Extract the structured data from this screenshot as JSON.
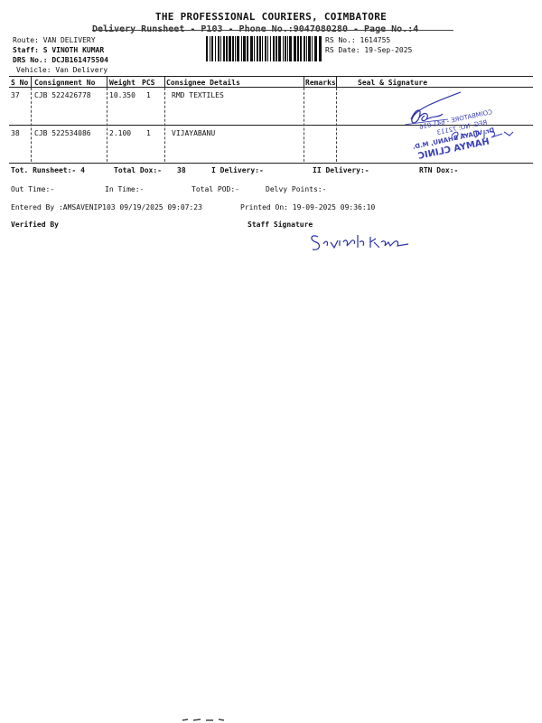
{
  "header": {
    "company": "THE PROFESSIONAL COURIERS, COIMBATORE",
    "subtitle": "Delivery Runsheet - P103 - Phone No.:9047080280 - Page No.:4",
    "route": "Route: VAN DELIVERY",
    "staff": "Staff: S VINOTH KUMAR",
    "drs": "DRS No.: DCJB161475504",
    "vehicle": "Vehicle: Van Delivery",
    "rs_no": "RS No.: 1614755",
    "rs_date": "RS Date: 19-Sep-2025"
  },
  "table": {
    "columns": {
      "sno": "S No",
      "consignment": "Consignment No",
      "weight": "Weight",
      "pcs": "PCS",
      "consignee": "Consignee Details",
      "remarks": "Remarks",
      "seal": "Seal & Signature"
    },
    "rows": [
      {
        "sno": "37",
        "consignment": "CJB 522426778",
        "weight": "10.350",
        "pcs": "1",
        "consignee": "RMD TEXTILES"
      },
      {
        "sno": "38",
        "consignment": "CJB 522534086",
        "weight": "2.100",
        "pcs": "1",
        "consignee": "VIJAYABANU"
      }
    ]
  },
  "totals": {
    "runsheet": "Tot. Runsheet:- 4",
    "total_dox": "Total Dox:-",
    "dox_value": "38",
    "i_delivery": "I Delivery:-",
    "ii_delivery": "II Delivery:-",
    "rtn_dox": "RTN Dox:-"
  },
  "times": {
    "out_time": "Out Time:-",
    "in_time": "In Time:-",
    "total_pod": "Total POD:-",
    "delvy_points": "Delvy Points:-"
  },
  "entry": {
    "entered_by": "Entered By :AMSAVENIP103 09/19/2025 09:07:23",
    "printed_on": "Printed On: 19-09-2025 09:36:10"
  },
  "signoff": {
    "verified_by": "Verified By",
    "staff_signature": "Staff Signature"
  },
  "stamp": {
    "color": "#3a3fb5",
    "lines": [
      "HAMYA CLINIC",
      "Dr. VIJAYA BHANU, M.D.",
      "REG. NO: 72113",
      "COIMBATORE - 641 016"
    ]
  },
  "ink_color": "#2b2fa8"
}
